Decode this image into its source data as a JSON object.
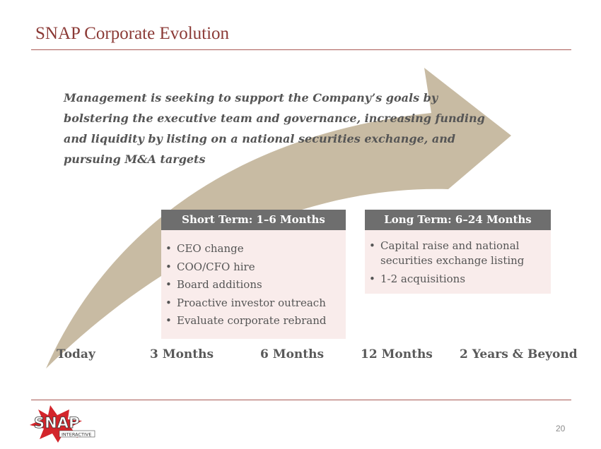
{
  "slide": {
    "title": "SNAP Corporate Evolution",
    "intro": "Management is seeking to support the Company’s goals by bolstering the executive team and governance, increasing funding and liquidity by listing on a national securities exchange, and pursuing M&A targets",
    "page_number": "20"
  },
  "short_term": {
    "header": "Short Term: 1–6 Months",
    "items": [
      "CEO change",
      "COO/CFO hire",
      "Board additions",
      "Proactive investor outreach",
      "Evaluate corporate rebrand"
    ]
  },
  "long_term": {
    "header": "Long Term: 6–24 Months",
    "items": [
      "Capital raise and national securities exchange listing",
      "1-2 acquisitions"
    ]
  },
  "timeline": [
    "Today",
    "3 Months",
    "6 Months",
    "12 Months",
    "2 Years & Beyond"
  ],
  "logo": {
    "text": "SNAP",
    "subtext": "INTERACTIVE"
  },
  "colors": {
    "accent": "#8b3a36",
    "arrow": "#c8bba3",
    "box_header": "#6e6e6e",
    "box_body": "#f9eceb",
    "logo_red": "#d3252b"
  },
  "bullet": "•"
}
